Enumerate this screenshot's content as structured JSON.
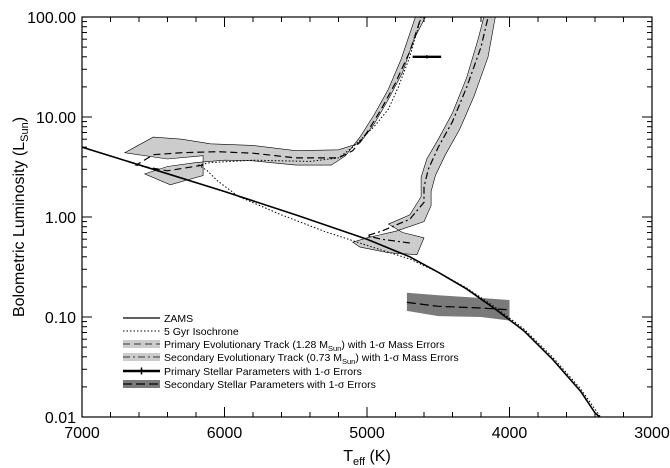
{
  "chart_data": {
    "type": "line",
    "xlabel": {
      "main": "T",
      "sub": "eff",
      "unit": " (K)"
    },
    "ylabel": {
      "main": "Bolometric Luminosity (L",
      "sub": "Sun",
      "tail": ")"
    },
    "xlim": [
      7000,
      3000
    ],
    "ylim": [
      0.01,
      100
    ],
    "yscale": "log",
    "x_ticks": [
      "7000",
      "6000",
      "5000",
      "4000",
      "3000"
    ],
    "y_ticks": [
      "0.01",
      "0.10",
      "1.00",
      "10.00",
      "100.00"
    ],
    "grid": false,
    "legend_position": "bottom-left",
    "legend": [
      {
        "text": "ZAMS",
        "style": "solid"
      },
      {
        "text": "5 Gyr Isochrone",
        "style": "dotted"
      },
      {
        "pre": "Primary Evolutionary Track (1.28 M",
        "sub": "Sun",
        "post": ") with 1-σ Mass Errors",
        "style": "dashed-band"
      },
      {
        "pre": "Secondary Evolutionary Track (0.73 M",
        "sub": "Sun",
        "post": ") with 1-σ Mass Errors",
        "style": "dashdot-band"
      },
      {
        "text": "Primary Stellar Parameters with 1-σ Errors",
        "style": "errorbar"
      },
      {
        "text": "Secondary Stellar Parameters with 1-σ Errors",
        "style": "dark-band"
      }
    ],
    "series": [
      {
        "name": "ZAMS",
        "points": [
          [
            7000,
            5.0
          ],
          [
            6500,
            3.0
          ],
          [
            6000,
            1.8
          ],
          [
            5500,
            1.05
          ],
          [
            5000,
            0.6
          ],
          [
            4700,
            0.4
          ],
          [
            4500,
            0.28
          ],
          [
            4300,
            0.19
          ],
          [
            4100,
            0.12
          ],
          [
            3900,
            0.073
          ],
          [
            3700,
            0.038
          ],
          [
            3500,
            0.018
          ],
          [
            3400,
            0.011
          ],
          [
            3350,
            0.0095
          ]
        ]
      },
      {
        "name": "5 Gyr Isochrone",
        "points": [
          [
            3350,
            0.0095
          ],
          [
            3500,
            0.019
          ],
          [
            3700,
            0.04
          ],
          [
            3900,
            0.076
          ],
          [
            4100,
            0.125
          ],
          [
            4300,
            0.195
          ],
          [
            4500,
            0.28
          ],
          [
            4700,
            0.38
          ],
          [
            5000,
            0.52
          ],
          [
            5300,
            0.72
          ],
          [
            5600,
            1.05
          ],
          [
            5900,
            1.6
          ],
          [
            6050,
            2.3
          ],
          [
            6120,
            2.9
          ],
          [
            6180,
            3.3
          ],
          [
            6100,
            3.5
          ],
          [
            5800,
            3.7
          ],
          [
            5400,
            3.6
          ],
          [
            5200,
            3.9
          ],
          [
            5100,
            5.0
          ],
          [
            4950,
            8.0
          ],
          [
            4850,
            12.0
          ],
          [
            4780,
            20.0
          ],
          [
            4700,
            40.0
          ],
          [
            4620,
            100.0
          ]
        ]
      },
      {
        "name": "Primary Evolutionary Track",
        "points": [
          [
            6150,
            3.3
          ],
          [
            6400,
            2.9
          ],
          [
            6620,
            3.3
          ],
          [
            6500,
            4.2
          ],
          [
            6300,
            4.4
          ],
          [
            6050,
            4.5
          ],
          [
            5800,
            4.35
          ],
          [
            5500,
            3.9
          ],
          [
            5200,
            3.9
          ],
          [
            5100,
            4.6
          ],
          [
            5000,
            7.0
          ],
          [
            4900,
            12.0
          ],
          [
            4800,
            22.0
          ],
          [
            4700,
            45.0
          ],
          [
            4620,
            100.0
          ]
        ],
        "band_upper": [
          [
            6150,
            4.1
          ],
          [
            6400,
            3.8
          ],
          [
            6700,
            4.4
          ],
          [
            6500,
            6.3
          ],
          [
            6300,
            6.0
          ],
          [
            6100,
            5.4
          ],
          [
            5800,
            5.2
          ],
          [
            5500,
            4.6
          ],
          [
            5200,
            4.7
          ],
          [
            5050,
            5.5
          ],
          [
            4950,
            8.5
          ],
          [
            4850,
            15.0
          ],
          [
            4750,
            28.0
          ],
          [
            4670,
            60.0
          ],
          [
            4590,
            100.0
          ]
        ],
        "band_lower": [
          [
            6150,
            2.6
          ],
          [
            6380,
            2.1
          ],
          [
            6560,
            2.7
          ],
          [
            6400,
            3.2
          ],
          [
            6200,
            3.5
          ],
          [
            6000,
            3.7
          ],
          [
            5800,
            3.65
          ],
          [
            5500,
            3.3
          ],
          [
            5250,
            3.3
          ],
          [
            5150,
            4.1
          ],
          [
            5050,
            6.3
          ],
          [
            4950,
            10.5
          ],
          [
            4850,
            19.0
          ],
          [
            4760,
            38.0
          ],
          [
            4660,
            100.0
          ]
        ]
      },
      {
        "name": "Secondary Evolutionary Track",
        "points": [
          [
            4700,
            0.55
          ],
          [
            4900,
            0.6
          ],
          [
            5000,
            0.65
          ],
          [
            4900,
            0.72
          ],
          [
            4700,
            0.95
          ],
          [
            4600,
            1.4
          ],
          [
            4600,
            2.0
          ],
          [
            4570,
            3.0
          ],
          [
            4500,
            5.0
          ],
          [
            4400,
            9.0
          ],
          [
            4300,
            20.0
          ],
          [
            4200,
            50.0
          ],
          [
            4150,
            100.0
          ]
        ],
        "band_upper": [
          [
            4600,
            0.62
          ],
          [
            4750,
            0.7
          ],
          [
            4850,
            0.85
          ],
          [
            4700,
            1.05
          ],
          [
            4620,
            1.6
          ],
          [
            4620,
            2.5
          ],
          [
            4580,
            3.8
          ],
          [
            4500,
            6.0
          ],
          [
            4400,
            11.0
          ],
          [
            4300,
            25.0
          ],
          [
            4220,
            60.0
          ],
          [
            4180,
            100.0
          ]
        ],
        "band_lower": [
          [
            4650,
            0.42
          ],
          [
            4850,
            0.44
          ],
          [
            5050,
            0.5
          ],
          [
            5100,
            0.56
          ],
          [
            5000,
            0.62
          ],
          [
            4800,
            0.72
          ],
          [
            4600,
            0.9
          ],
          [
            4550,
            1.3
          ],
          [
            4550,
            1.8
          ],
          [
            4520,
            2.6
          ],
          [
            4450,
            4.2
          ],
          [
            4350,
            7.5
          ],
          [
            4250,
            16.0
          ],
          [
            4150,
            40.0
          ],
          [
            4100,
            100.0
          ]
        ]
      },
      {
        "name": "Primary Stellar Parameters",
        "x": 4580,
        "y": 40.0,
        "x_err": 100,
        "y_err": [
          38.5,
          41.5
        ]
      },
      {
        "name": "Secondary Stellar Parameters",
        "points": [
          [
            4720,
            0.14
          ],
          [
            4500,
            0.128
          ],
          [
            4200,
            0.123
          ],
          [
            4000,
            0.118
          ]
        ],
        "band_upper": [
          [
            4720,
            0.175
          ],
          [
            4500,
            0.165
          ],
          [
            4200,
            0.155
          ],
          [
            4000,
            0.148
          ]
        ],
        "band_lower": [
          [
            4720,
            0.115
          ],
          [
            4500,
            0.102
          ],
          [
            4200,
            0.1
          ],
          [
            4000,
            0.092
          ]
        ]
      }
    ]
  }
}
